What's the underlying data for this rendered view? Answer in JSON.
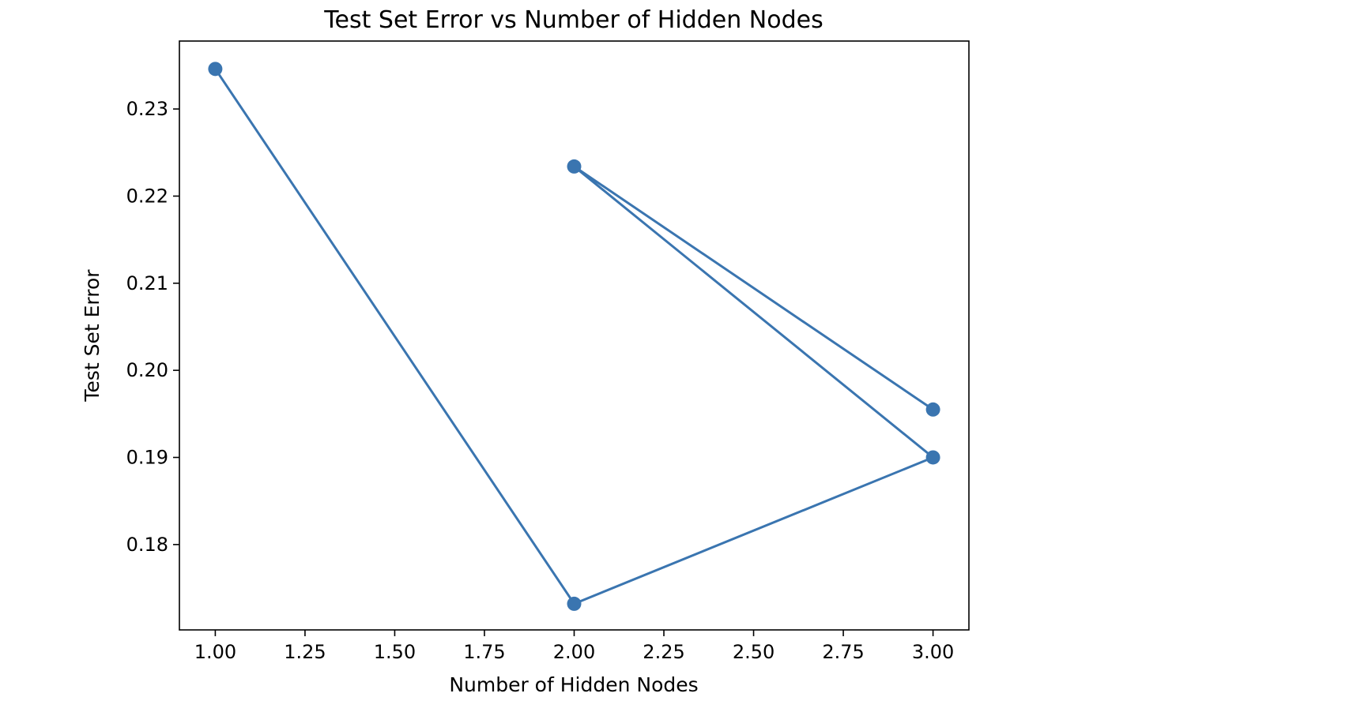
{
  "chart_data": {
    "type": "line",
    "title": "Test Set Error vs Number of Hidden Nodes",
    "xlabel": "Number of Hidden Nodes",
    "ylabel": "Test Set Error",
    "x": [
      1,
      2,
      3,
      2,
      3
    ],
    "series": [
      {
        "values": [
          0.2346,
          0.1732,
          0.19,
          0.2234,
          0.1955
        ]
      }
    ],
    "xlim": [
      0.9,
      3.1
    ],
    "ylim": [
      0.1702,
      0.2378
    ],
    "xticks": [
      1.0,
      1.25,
      1.5,
      1.75,
      2.0,
      2.25,
      2.5,
      2.75,
      3.0
    ],
    "xtick_labels": [
      "1.00",
      "1.25",
      "1.50",
      "1.75",
      "2.00",
      "2.25",
      "2.50",
      "2.75",
      "3.00"
    ],
    "yticks": [
      0.18,
      0.19,
      0.2,
      0.21,
      0.22,
      0.23
    ],
    "ytick_labels": [
      "0.18",
      "0.19",
      "0.20",
      "0.21",
      "0.22",
      "0.23"
    ],
    "grid": false,
    "line_color": "#3a75b0",
    "marker": "circle"
  }
}
